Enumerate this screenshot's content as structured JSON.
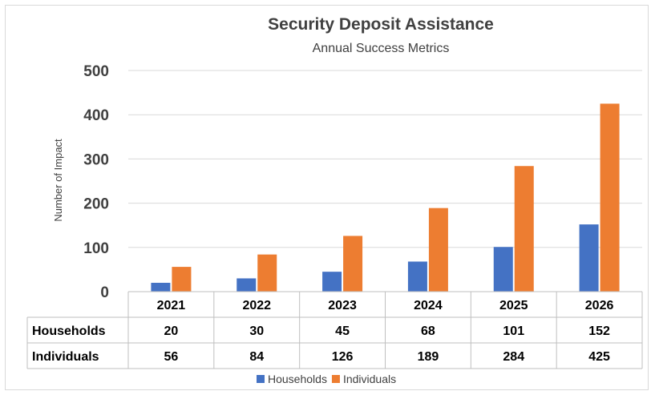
{
  "chart_data": {
    "type": "bar",
    "title": "Security Deposit Assistance",
    "subtitle": "Annual Success Metrics",
    "xlabel": "",
    "ylabel": "Number of Impact",
    "ylim": [
      0,
      500
    ],
    "yticks": [
      0,
      100,
      200,
      300,
      400,
      500
    ],
    "categories": [
      "2021",
      "2022",
      "2023",
      "2024",
      "2025",
      "2026"
    ],
    "series": [
      {
        "name": "Households",
        "values": [
          20,
          30,
          45,
          68,
          101,
          152
        ],
        "color": "#4472c4"
      },
      {
        "name": "Individuals",
        "values": [
          56,
          84,
          126,
          189,
          284,
          425
        ],
        "color": "#ed7d31"
      }
    ],
    "grid": true,
    "legend": "bottom",
    "data_table": true
  }
}
